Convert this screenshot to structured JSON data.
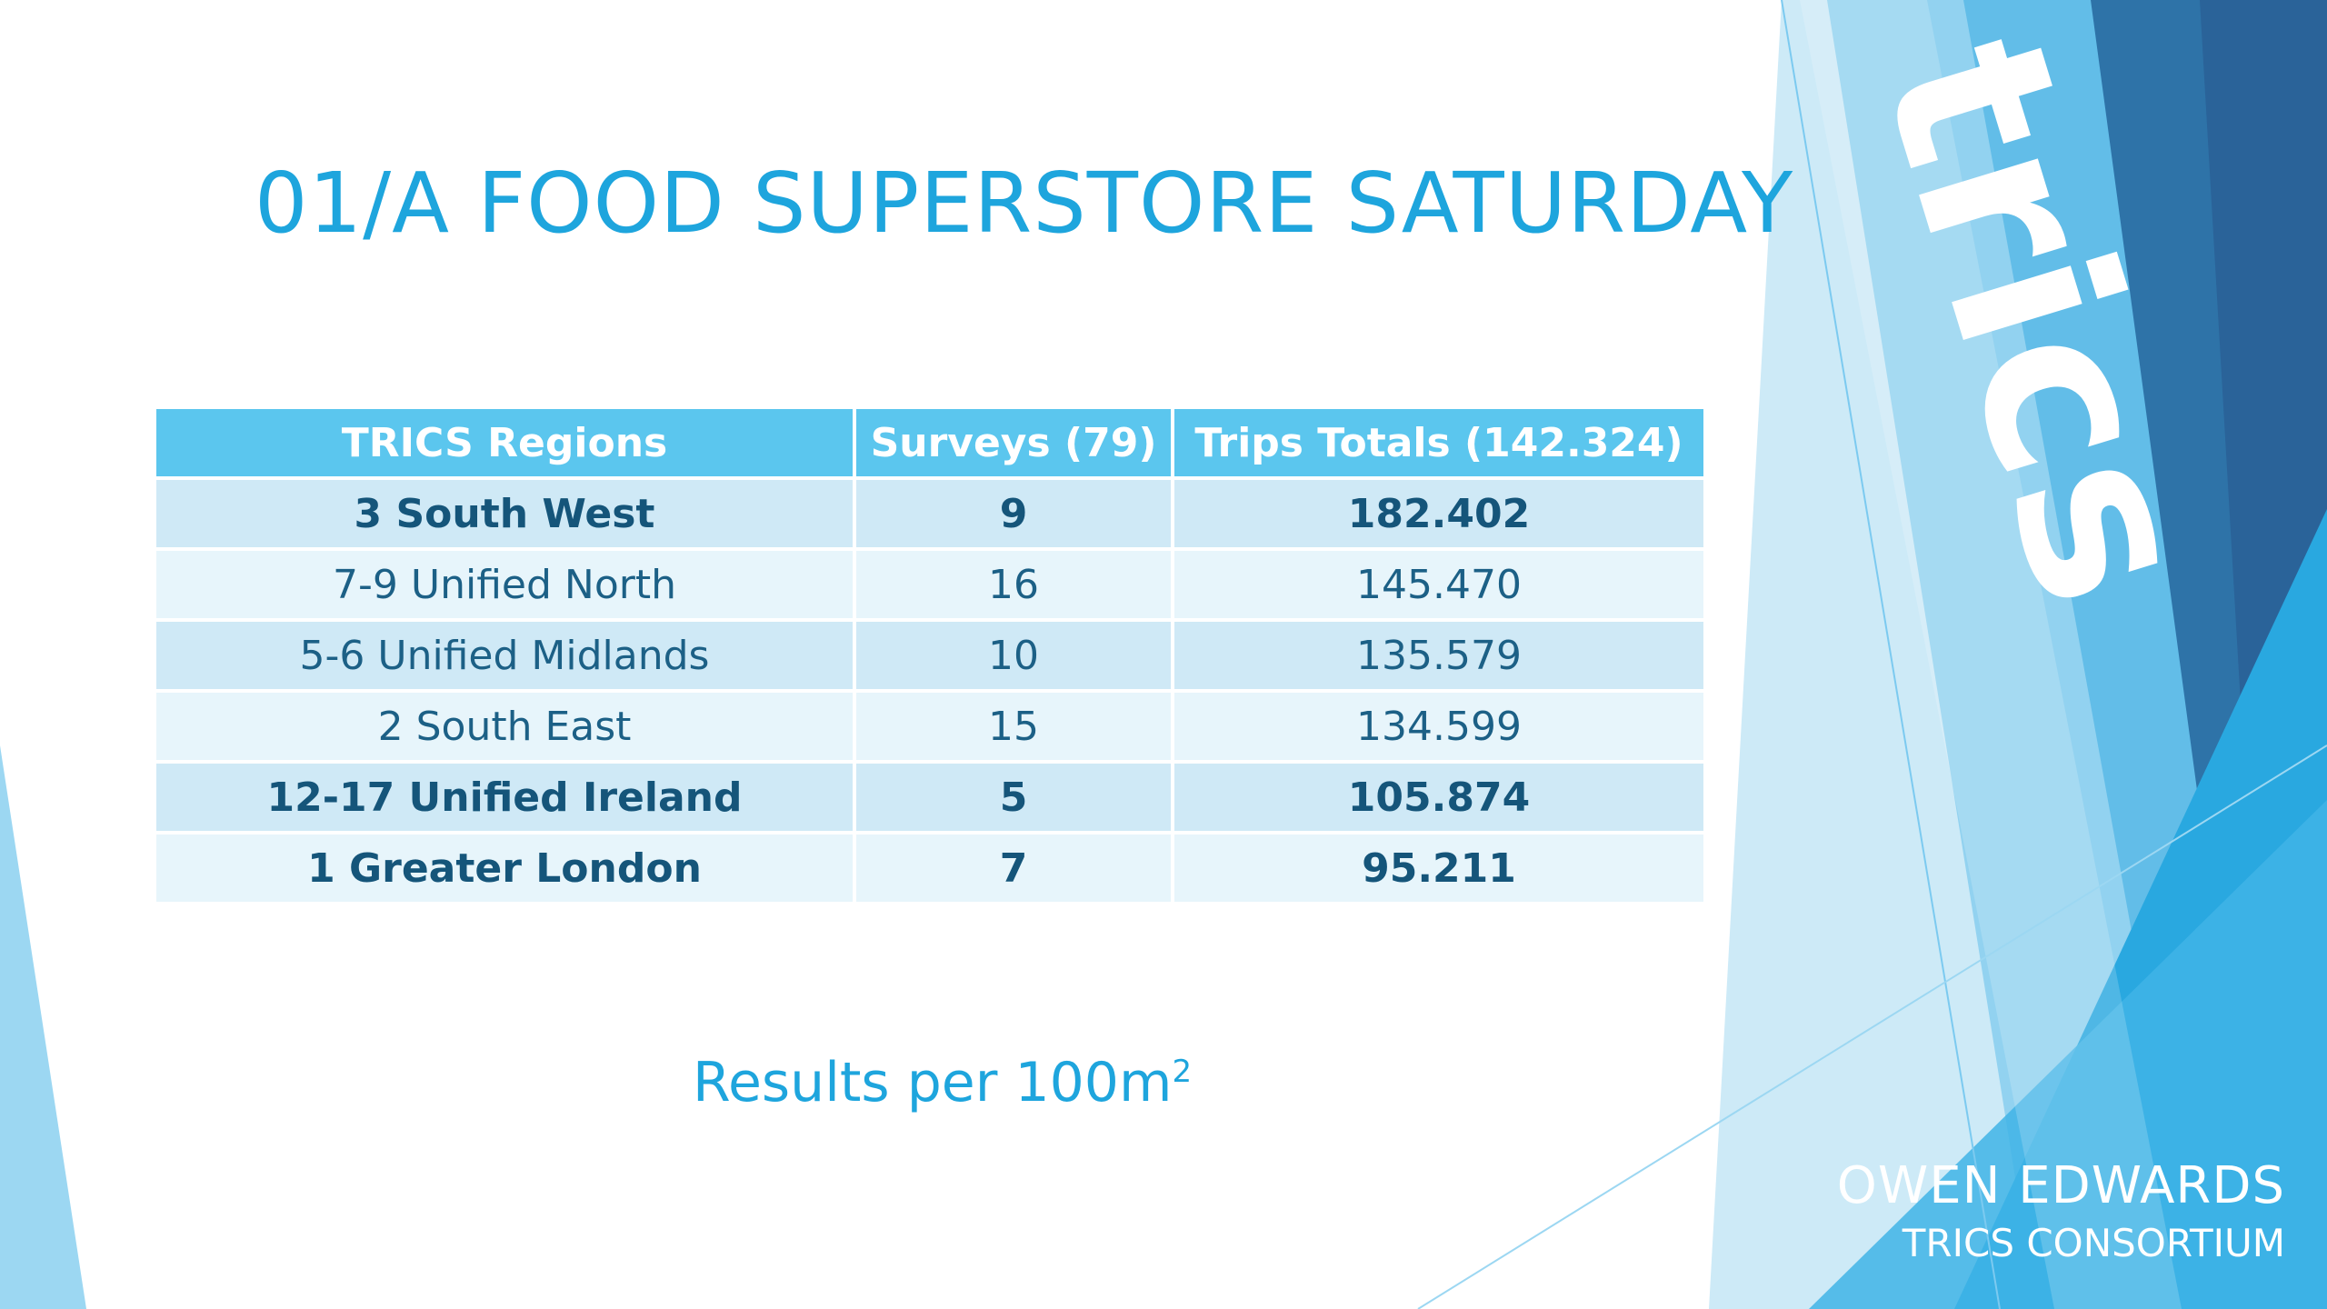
{
  "slide": {
    "title": "01/A FOOD SUPERSTORE SATURDAY",
    "table": {
      "headers": [
        "TRICS Regions",
        "Surveys (79)",
        "Trips Totals (142.324)"
      ],
      "rows": [
        {
          "region": "3 South West",
          "surveys": "9",
          "trips": "182.402"
        },
        {
          "region": "7-9 Unified North",
          "surveys": "16",
          "trips": "145.470"
        },
        {
          "region": "5-6 Unified Midlands",
          "surveys": "10",
          "trips": "135.579"
        },
        {
          "region": "2 South East",
          "surveys": "15",
          "trips": "134.599"
        },
        {
          "region": "12-17 Unified Ireland",
          "surveys": "5",
          "trips": "105.874"
        },
        {
          "region": "1 Greater London",
          "surveys": "7",
          "trips": "95.211"
        }
      ]
    },
    "note": {
      "text": "Results per 100m",
      "superscript": "2"
    },
    "logo_text": "trics",
    "author": {
      "name": "OWEN EDWARDS",
      "organization": "TRICS CONSORTIUM"
    }
  },
  "colors": {
    "accent": "#1ea5dd",
    "header_bg": "#5bc6ee",
    "row_dark": "#cfe9f6",
    "row_light": "#e7f5fb",
    "panel_dark": "#2a6ea3"
  }
}
